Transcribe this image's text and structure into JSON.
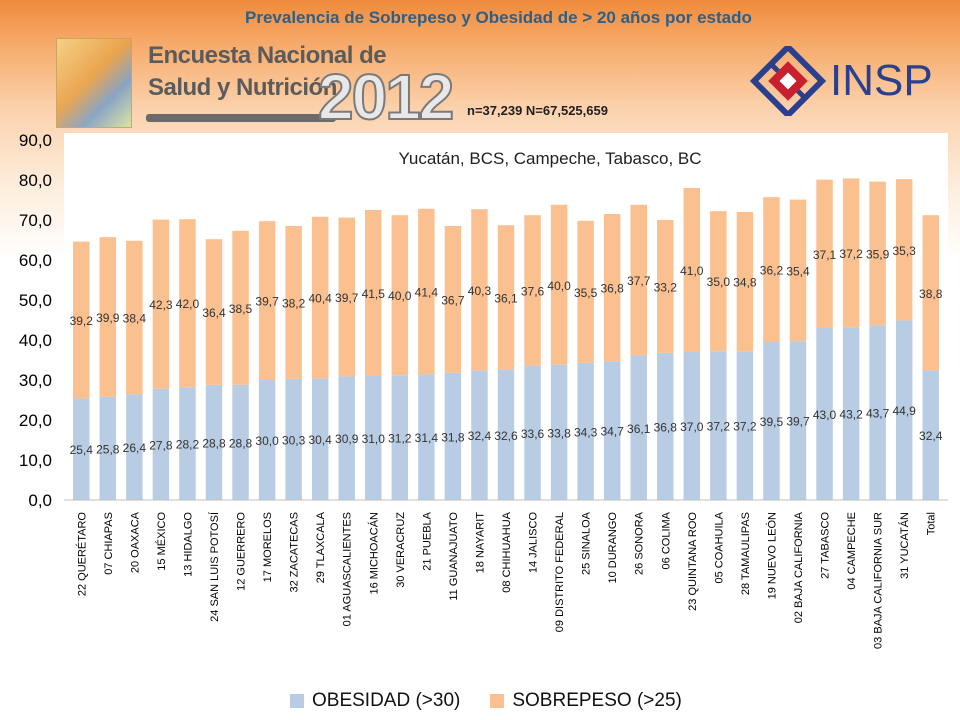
{
  "header": {
    "title": "Prevalencia de Sobrepeso y Obesidad de > 20 años  por estado",
    "logo_line1": "Encuesta Nacional de",
    "logo_line2": "Salud y Nutrición",
    "logo_year": "2012",
    "institution": "INSP",
    "sample": "n=37,239  N=67,525,659"
  },
  "colors": {
    "obesidad": "#b8cce4",
    "sobrepeso": "#fac090",
    "logo": "#2b3f8f",
    "title": "#2e5f86"
  },
  "chart_data": {
    "type": "bar",
    "stacked": true,
    "annotation": "Yucatán, BCS, Campeche, Tabasco, BC",
    "ylim": [
      0,
      90
    ],
    "yticks": [
      "0,0",
      "10,0",
      "20,0",
      "30,0",
      "40,0",
      "50,0",
      "60,0",
      "70,0",
      "80,0",
      "90,0"
    ],
    "legend_position": "bottom",
    "categories": [
      "22 QUERÉTARO",
      "07 CHIAPAS",
      "20 OAXACA",
      "15 MÉXICO",
      "13 HIDALGO",
      "24 SAN LUIS POTOSÍ",
      "12 GUERRERO",
      "17 MORELOS",
      "32 ZACATECAS",
      "29 TLAXCALA",
      "01 AGUASCALIENTES",
      "16 MICHOACÁN",
      "30 VERACRUZ",
      "21 PUEBLA",
      "11 GUANAJUATO",
      "18 NAYARIT",
      "08 CHIHUAHUA",
      "14 JALISCO",
      "09 DISTRITO FEDERAL",
      "25 SINALOA",
      "10 DURANGO",
      "26 SONORA",
      "06 COLIMA",
      "23 QUINTANA ROO",
      "05 COAHUILA",
      "28 TAMAULIPAS",
      "19 NUEVO LEÓN",
      "02 BAJA CALIFORNIA",
      "27 TABASCO",
      "04 CAMPECHE",
      "03 BAJA CALIFORNIA SUR",
      "31 YUCATÁN",
      "Total"
    ],
    "series": [
      {
        "name": "OBESIDAD (>30)",
        "values": [
          25.4,
          25.8,
          26.4,
          27.8,
          28.2,
          28.8,
          28.8,
          30.0,
          30.3,
          30.4,
          30.9,
          31.0,
          31.2,
          31.4,
          31.8,
          32.4,
          32.6,
          33.6,
          33.8,
          34.3,
          34.7,
          36.1,
          36.8,
          37.0,
          37.2,
          37.2,
          39.5,
          39.7,
          43.0,
          43.2,
          43.7,
          44.9,
          32.4
        ],
        "labels": [
          "25,4",
          "25,8",
          "26,4",
          "27,8",
          "28,2",
          "28,8",
          "28,8",
          "30,0",
          "30,3",
          "30,4",
          "30,9",
          "31,0",
          "31,2",
          "31,4",
          "31,8",
          "32,4",
          "32,6",
          "33,6",
          "33,8",
          "34,3",
          "34,7",
          "36,1",
          "36,8",
          "37,0",
          "37,2",
          "37,2",
          "39,5",
          "39,7",
          "43,0",
          "43,2",
          "43,7",
          "44,9",
          "32,4"
        ]
      },
      {
        "name": "SOBREPESO (>25)",
        "values": [
          39.2,
          39.9,
          38.4,
          42.3,
          42.0,
          36.4,
          38.5,
          39.7,
          38.2,
          40.4,
          39.7,
          41.5,
          40.0,
          41.4,
          36.7,
          40.3,
          36.1,
          37.6,
          40.0,
          35.5,
          36.8,
          37.7,
          33.2,
          41.0,
          35.0,
          34.8,
          36.2,
          35.4,
          37.1,
          37.2,
          35.9,
          35.3,
          38.8
        ],
        "labels": [
          "39,2",
          "39,9",
          "38,4",
          "42,3",
          "42,0",
          "36,4",
          "38,5",
          "39,7",
          "38,2",
          "40,4",
          "39,7",
          "41,5",
          "40,0",
          "41,4",
          "36,7",
          "40,3",
          "36,1",
          "37,6",
          "40,0",
          "35,5",
          "36,8",
          "37,7",
          "33,2",
          "41,0",
          "35,0",
          "34,8",
          "36,2",
          "35,4",
          "37,1",
          "37,2",
          "35,9",
          "35,3",
          "38,8"
        ]
      }
    ]
  }
}
